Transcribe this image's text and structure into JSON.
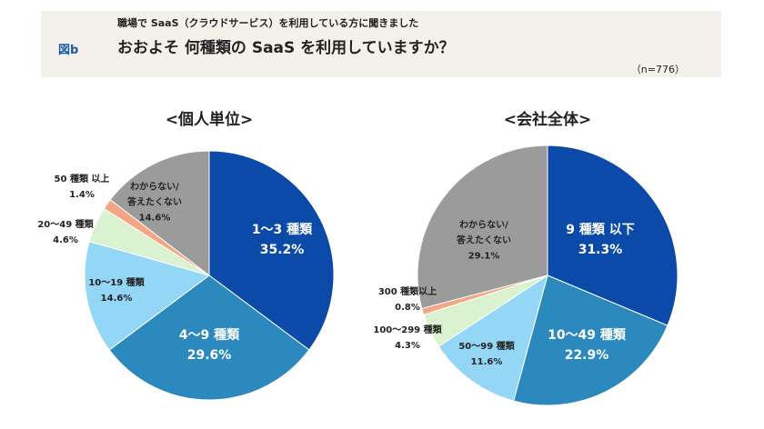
{
  "header": {
    "figure": "図b",
    "subtitle": "職場で SaaS（クラウドサービス）を利用している方に聞きました",
    "title": "おおよそ 何種類の SaaS を利用していますか？",
    "n": "（n=776）"
  },
  "chart_data": [
    {
      "type": "pie",
      "title": "<個人単位>",
      "slices": [
        {
          "label": "1〜3 種類",
          "value": 35.2,
          "value_label": "35.2%",
          "color": "#0b4aa8"
        },
        {
          "label": "4〜9 種類",
          "value": 29.6,
          "value_label": "29.6%",
          "color": "#2b89bd"
        },
        {
          "label": "10〜19 種類",
          "value": 14.6,
          "value_label": "14.6%",
          "color": "#93d6f6"
        },
        {
          "label": "20〜49 種類",
          "value": 4.6,
          "value_label": "4.6%",
          "color": "#daf2cf"
        },
        {
          "label": "50 種類 以上",
          "value": 1.4,
          "value_label": "1.4%",
          "color": "#f2a683"
        },
        {
          "label": "わからない/ 答えたくない",
          "value": 14.6,
          "value_label": "14.6%",
          "color": "#9b9b9b"
        }
      ]
    },
    {
      "type": "pie",
      "title": "<会社全体>",
      "slices": [
        {
          "label": "9 種類 以下",
          "value": 31.3,
          "value_label": "31.3%",
          "color": "#0b4aa8"
        },
        {
          "label": "10〜49 種類",
          "value": 22.9,
          "value_label": "22.9%",
          "color": "#2b89bd"
        },
        {
          "label": "50〜99 種類",
          "value": 11.6,
          "value_label": "11.6%",
          "color": "#93d6f6"
        },
        {
          "label": "100〜299 種類",
          "value": 4.3,
          "value_label": "4.3%",
          "color": "#daf2cf"
        },
        {
          "label": "300 種類以上",
          "value": 0.8,
          "value_label": "0.8%",
          "color": "#f2a683"
        },
        {
          "label": "わからない/ 答えたくない",
          "value": 29.1,
          "value_label": "29.1%",
          "color": "#9b9b9b"
        }
      ]
    }
  ]
}
